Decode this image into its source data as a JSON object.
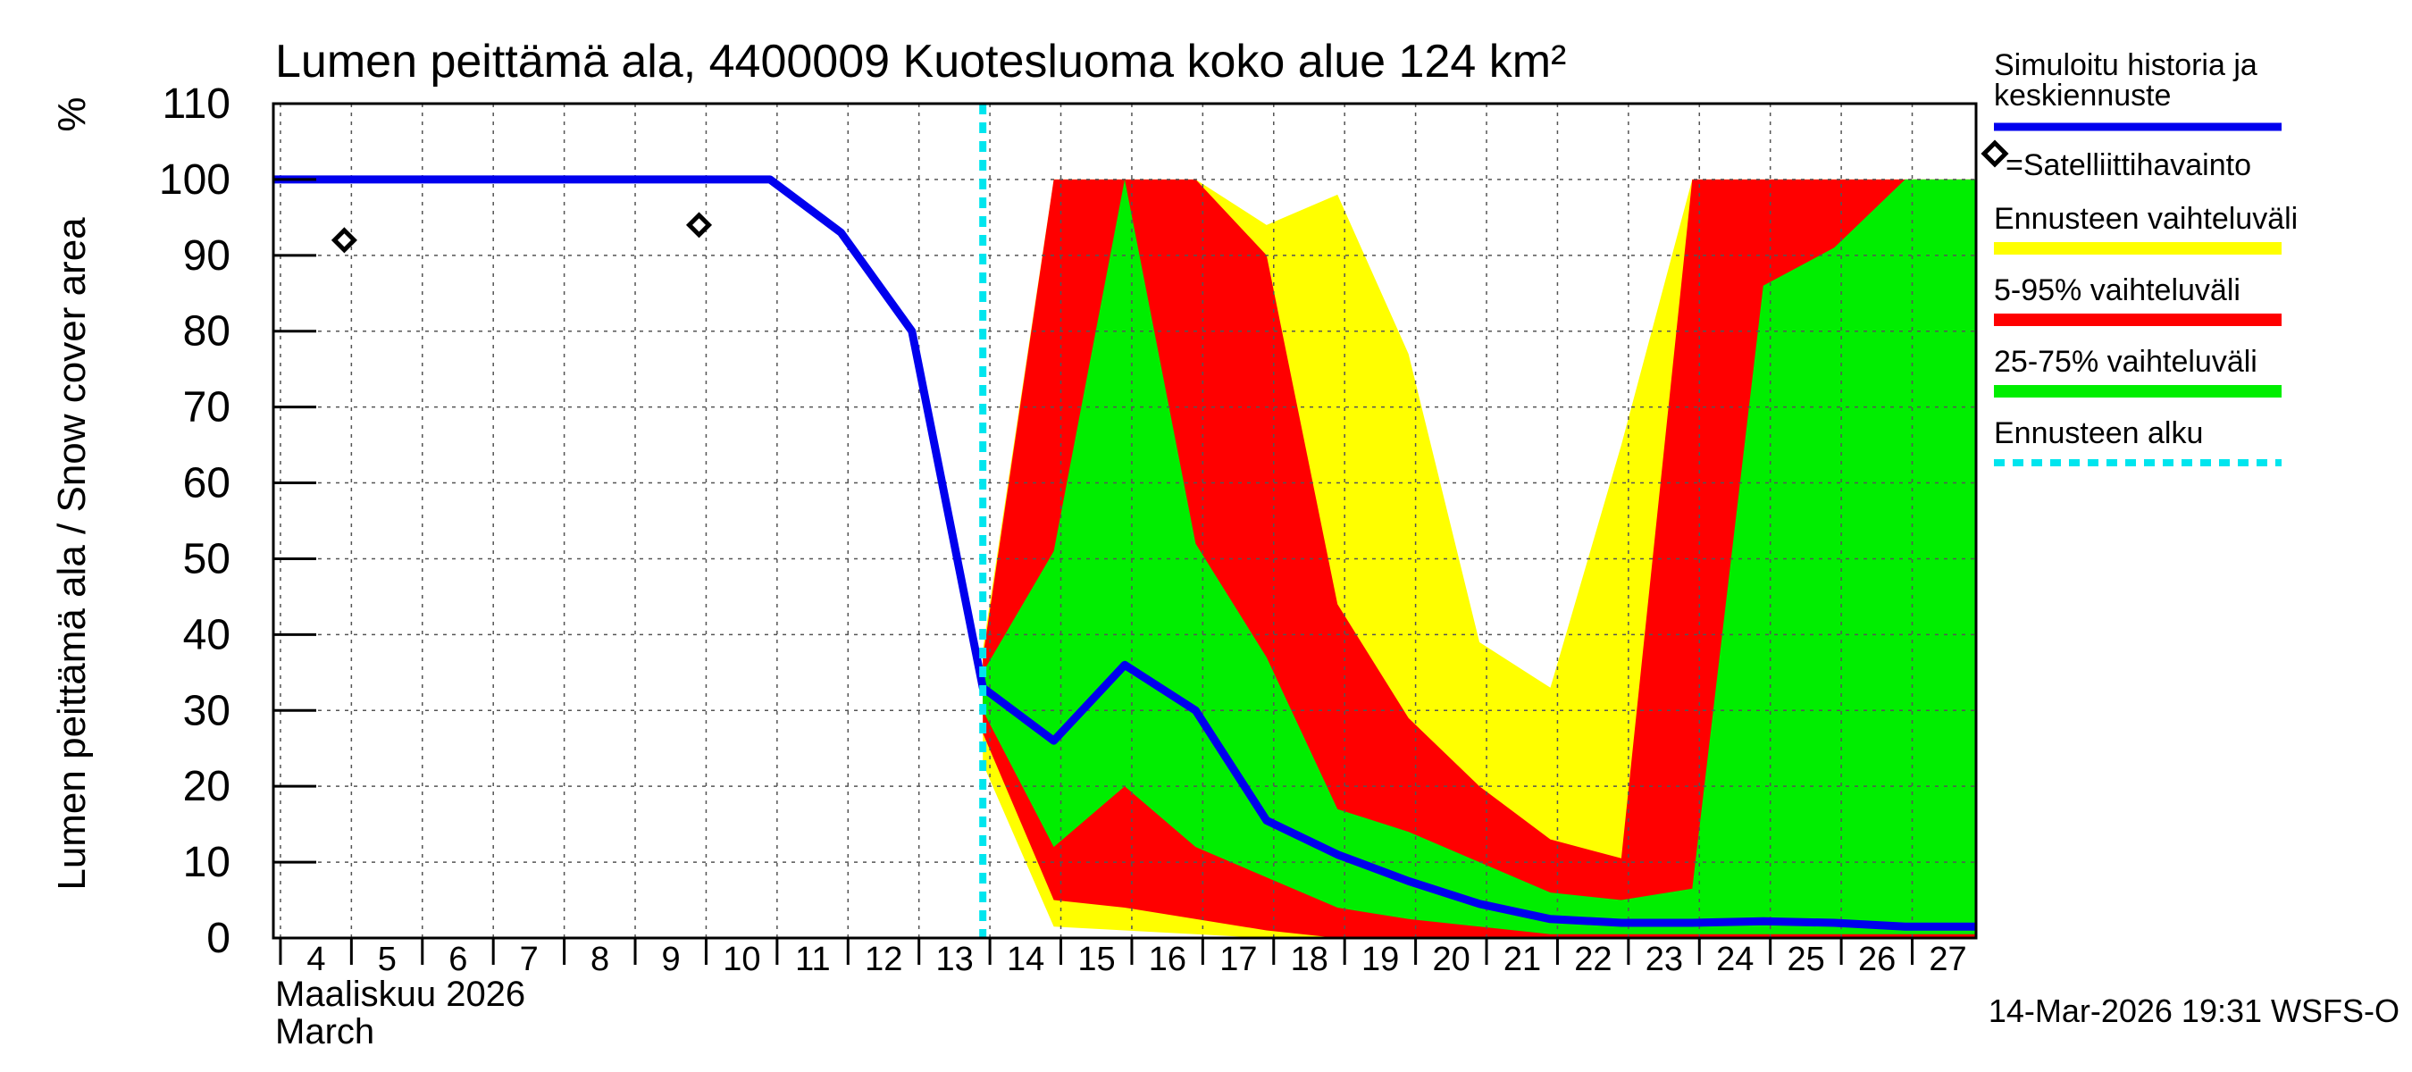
{
  "chart_data": {
    "type": "area",
    "title": "Lumen peittämä ala, 4400009 Kuotesluoma koko alue 124 km²",
    "ylabel": "Lumen peittämä ala / Snow cover area",
    "yunit": "%",
    "ylim": [
      0,
      110
    ],
    "yticks": [
      0,
      10,
      20,
      30,
      40,
      50,
      60,
      70,
      80,
      90,
      100,
      110
    ],
    "xlim": [
      3.9,
      27.9
    ],
    "xticks": [
      4,
      5,
      6,
      7,
      8,
      9,
      10,
      11,
      12,
      13,
      14,
      15,
      16,
      17,
      18,
      19,
      20,
      21,
      22,
      23,
      24,
      25,
      26,
      27
    ],
    "xlabel_fi": "Maaliskuu 2026",
    "xlabel_en": "March",
    "forecast_start": 13.9,
    "grid": true,
    "legend_position": "right",
    "legend": [
      {
        "label": "Simuloitu historia ja\nkeskiennuste",
        "color": "#0000ee",
        "kind": "line"
      },
      {
        "label": "=Satelliittihavainto",
        "color": "#000000",
        "kind": "diamond"
      },
      {
        "label": "Ennusteen vaihteluväli",
        "color": "#ffff00",
        "kind": "band"
      },
      {
        "label": "5-95% vaihteluväli",
        "color": "#ff0000",
        "kind": "band"
      },
      {
        "label": "25-75% vaihteluväli",
        "color": "#00ee00",
        "kind": "band"
      },
      {
        "label": "Ennusteen alku",
        "color": "#00e5ee",
        "kind": "dashed"
      }
    ],
    "series": [
      {
        "name": "Ennusteen vaihteluväli",
        "color": "#ffff00",
        "x": [
          13.9,
          14.9,
          15.9,
          16.9,
          17.9,
          18.9,
          19.9,
          20.9,
          21.9,
          22.9,
          23.9,
          24.9,
          25.9,
          26.9,
          27.9
        ],
        "lower": [
          23,
          1.5,
          1,
          0.5,
          0,
          0,
          0,
          0,
          0,
          0,
          0,
          0,
          0,
          0,
          0
        ],
        "upper": [
          38,
          100,
          100,
          100,
          94,
          98,
          77,
          39,
          33,
          65,
          100,
          100,
          100,
          100,
          100
        ]
      },
      {
        "name": "5-95% vaihteluväli",
        "color": "#ff0000",
        "x": [
          13.9,
          14.9,
          15.9,
          16.9,
          17.9,
          18.9,
          19.9,
          20.9,
          21.9,
          22.9,
          23.9,
          24.9,
          25.9,
          26.9,
          27.9
        ],
        "lower": [
          27,
          5,
          4,
          2.5,
          1,
          0,
          0,
          0,
          0,
          0,
          0,
          0,
          0,
          0,
          0
        ],
        "upper": [
          37,
          100,
          100,
          100,
          90,
          44,
          29,
          20,
          13,
          10.5,
          100,
          100,
          100,
          100,
          100
        ]
      },
      {
        "name": "25-75% vaihteluväli",
        "color": "#00ee00",
        "x": [
          13.9,
          14.9,
          15.9,
          16.9,
          17.9,
          18.9,
          19.9,
          20.9,
          21.9,
          22.9,
          23.9,
          24.9,
          25.9,
          26.9,
          27.9
        ],
        "lower": [
          30,
          12,
          20,
          12,
          8,
          4,
          2.5,
          1.5,
          0.5,
          0.5,
          0.5,
          0.5,
          0.5,
          0.5,
          0.5
        ],
        "upper": [
          35,
          51,
          100,
          52,
          37,
          17,
          14,
          10,
          6,
          5,
          6.5,
          86,
          91,
          100,
          100
        ]
      }
    ],
    "median": {
      "name": "Simuloitu historia ja keskiennuste",
      "color": "#0000ee",
      "x": [
        3.9,
        10.9,
        11.9,
        12.9,
        13.9,
        14.9,
        15.9,
        16.9,
        17.9,
        18.9,
        19.9,
        20.9,
        21.9,
        22.9,
        23.9,
        24.9,
        25.9,
        26.9,
        27.9
      ],
      "y": [
        100,
        100,
        93,
        80,
        33,
        26,
        36,
        30,
        15.5,
        11,
        7.5,
        4.5,
        2.5,
        2,
        2,
        2.2,
        2,
        1.5,
        1.5
      ]
    },
    "observations": {
      "name": "Satelliittihavainto",
      "x": [
        4.9,
        9.9
      ],
      "y": [
        92,
        94
      ]
    },
    "timestamp": "14-Mar-2026 19:31 WSFS-O"
  }
}
